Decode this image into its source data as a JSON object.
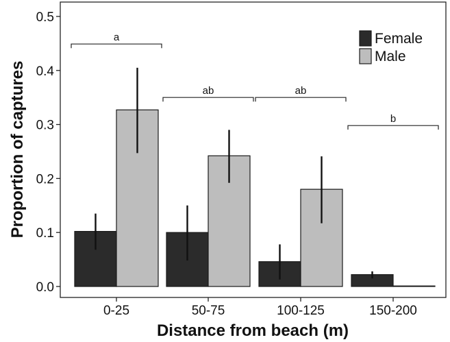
{
  "chart_data": {
    "type": "bar",
    "title": "",
    "xlabel": "Distance from beach (m)",
    "ylabel": "Proportion of captures",
    "ylim": [
      0,
      0.5
    ],
    "yticks": [
      0.0,
      0.1,
      0.2,
      0.3,
      0.4,
      0.5
    ],
    "ytick_labels": [
      "0.0",
      "0.1",
      "0.2",
      "0.3",
      "0.4",
      "0.5"
    ],
    "categories": [
      "0-25",
      "50-75",
      "100-125",
      "150-200"
    ],
    "series": [
      {
        "name": "Female",
        "color": "#2b2b2b",
        "values": [
          0.102,
          0.1,
          0.046,
          0.022
        ],
        "err_low": [
          0.068,
          0.048,
          0.013,
          0.015
        ],
        "err_high": [
          0.135,
          0.15,
          0.078,
          0.028
        ]
      },
      {
        "name": "Male",
        "color": "#bdbdbd",
        "values": [
          0.327,
          0.242,
          0.18,
          0.0
        ],
        "err_low": [
          0.247,
          0.192,
          0.117,
          0.0
        ],
        "err_high": [
          0.405,
          0.29,
          0.241,
          0.0
        ]
      }
    ],
    "significance": [
      "a",
      "ab",
      "ab",
      "b"
    ],
    "significance_y": [
      0.449,
      0.35,
      0.35,
      0.298
    ],
    "grid": false,
    "legend": "top-right"
  }
}
